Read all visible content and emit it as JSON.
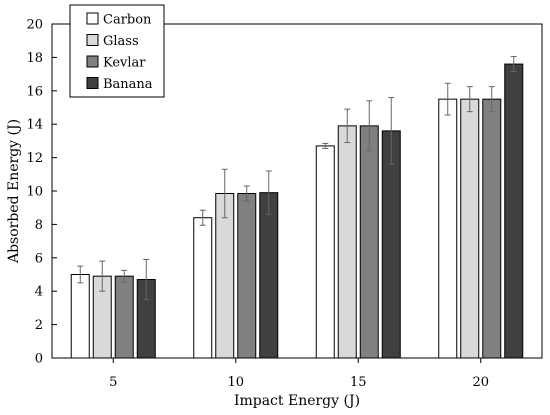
{
  "chart_data": {
    "type": "bar",
    "xlabel": "Impact Energy (J)",
    "ylabel": "Absorbed Energy (J)",
    "ylim": [
      0,
      20
    ],
    "yticks": [
      0,
      2,
      4,
      6,
      8,
      10,
      12,
      14,
      16,
      18,
      20
    ],
    "categories": [
      "5",
      "10",
      "15",
      "20"
    ],
    "legend_position": "top-left",
    "grid": false,
    "series": [
      {
        "name": "Carbon",
        "color": "#ffffff",
        "values": [
          5.0,
          8.4,
          12.7,
          15.5
        ],
        "errors": [
          0.5,
          0.45,
          0.15,
          0.95
        ]
      },
      {
        "name": "Glass",
        "color": "#d9d9d9",
        "values": [
          4.9,
          9.85,
          13.9,
          15.5
        ],
        "errors": [
          0.9,
          1.45,
          1.0,
          0.75
        ]
      },
      {
        "name": "Kevlar",
        "color": "#808080",
        "values": [
          4.9,
          9.85,
          13.9,
          15.5
        ],
        "errors": [
          0.35,
          0.45,
          1.5,
          0.75
        ]
      },
      {
        "name": "Banana",
        "color": "#404040",
        "values": [
          4.7,
          9.9,
          13.6,
          17.6
        ],
        "errors": [
          1.2,
          1.3,
          2.0,
          0.45
        ]
      }
    ]
  }
}
